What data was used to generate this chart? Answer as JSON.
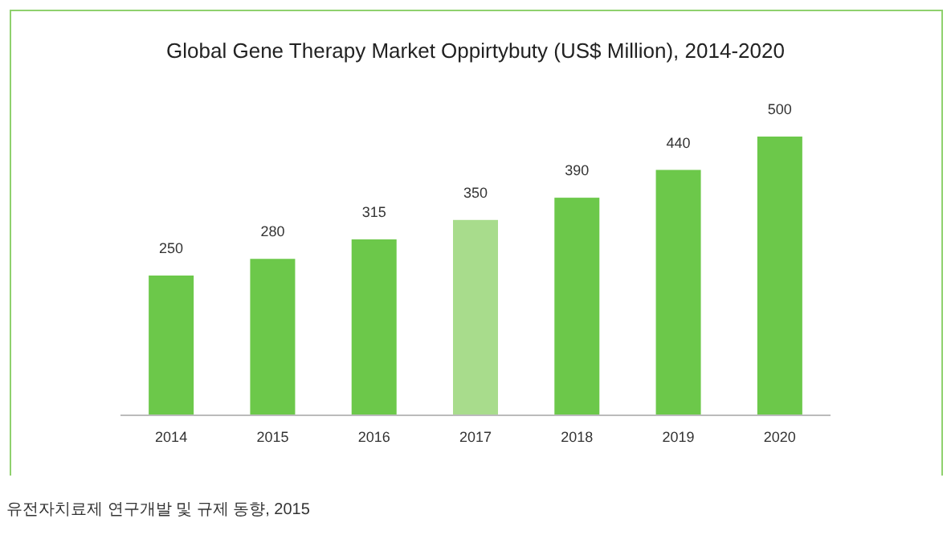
{
  "chart_data": {
    "type": "bar",
    "title": "Global Gene Therapy Market Oppirtybuty (US$ Million), 2014-2020",
    "categories": [
      "2014",
      "2015",
      "2016",
      "2017",
      "2018",
      "2019",
      "2020"
    ],
    "values": [
      250,
      280,
      315,
      350,
      390,
      440,
      500
    ],
    "colors": [
      "#6cc84a",
      "#6cc84a",
      "#6cc84a",
      "#a8dc8c",
      "#6cc84a",
      "#6cc84a",
      "#6cc84a"
    ],
    "data_labels": true,
    "annotations": [
      "유전자치료제 연구개발 및 규제 동향, 2015"
    ]
  }
}
